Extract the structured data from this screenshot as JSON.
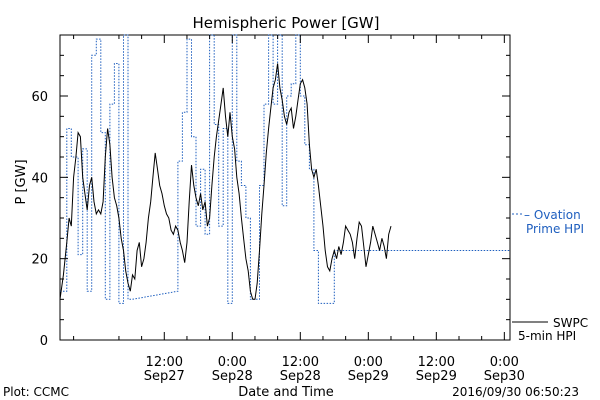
{
  "chart_data": {
    "type": "line",
    "title": "Hemispheric Power [GW]",
    "xlabel": "Date and Time",
    "ylabel": "P [GW]",
    "ylim": [
      0,
      75
    ],
    "x_range_hours": [
      -9.2,
      30.5
    ],
    "x_ticks": [
      {
        "time": "12:00",
        "date": "Sep27",
        "t": 0
      },
      {
        "time": "0:00",
        "date": "Sep28",
        "t": 6
      },
      {
        "time": "12:00",
        "date": "Sep28",
        "t": 12
      },
      {
        "time": "0:00",
        "date": "Sep29",
        "t": 18
      },
      {
        "time": "12:00",
        "date": "Sep29",
        "t": 24
      },
      {
        "time": "0:00",
        "date": "Sep30",
        "t": 30
      }
    ],
    "y_ticks": [
      0,
      20,
      40,
      60
    ],
    "grid": false,
    "legend": {
      "placement": "right",
      "ovation_label_1": "– Ovation",
      "ovation_label_2": "Prime HPI",
      "swpc_label_1": "SWPC",
      "swpc_label_2": "5-min HPI"
    },
    "footer": {
      "left": "Plot: CCMC",
      "right": "2016/09/30 06:50:23"
    },
    "series": [
      {
        "name": "SWPC 5-min HPI",
        "color": "#000000",
        "style": "solid",
        "points": [
          [
            -9.2,
            10
          ],
          [
            -8.9,
            16
          ],
          [
            -8.6,
            24
          ],
          [
            -8.4,
            30
          ],
          [
            -8.2,
            28
          ],
          [
            -8.0,
            40
          ],
          [
            -7.8,
            45
          ],
          [
            -7.6,
            51
          ],
          [
            -7.4,
            50
          ],
          [
            -7.2,
            40
          ],
          [
            -7.0,
            36
          ],
          [
            -6.8,
            32
          ],
          [
            -6.6,
            38
          ],
          [
            -6.4,
            40
          ],
          [
            -6.2,
            34
          ],
          [
            -6.0,
            31
          ],
          [
            -5.8,
            32
          ],
          [
            -5.6,
            31
          ],
          [
            -5.4,
            34
          ],
          [
            -5.2,
            45
          ],
          [
            -5.0,
            52
          ],
          [
            -4.8,
            48
          ],
          [
            -4.6,
            40
          ],
          [
            -4.4,
            35
          ],
          [
            -4.2,
            33
          ],
          [
            -4.0,
            30
          ],
          [
            -3.8,
            25
          ],
          [
            -3.6,
            22
          ],
          [
            -3.4,
            17
          ],
          [
            -3.2,
            14
          ],
          [
            -3.0,
            12
          ],
          [
            -2.8,
            16
          ],
          [
            -2.6,
            15
          ],
          [
            -2.4,
            22
          ],
          [
            -2.2,
            24
          ],
          [
            -2.0,
            18
          ],
          [
            -1.8,
            20
          ],
          [
            -1.6,
            24
          ],
          [
            -1.4,
            30
          ],
          [
            -1.2,
            34
          ],
          [
            -1.0,
            40
          ],
          [
            -0.8,
            46
          ],
          [
            -0.6,
            42
          ],
          [
            -0.4,
            38
          ],
          [
            -0.2,
            36
          ],
          [
            0.0,
            33
          ],
          [
            0.2,
            31
          ],
          [
            0.4,
            30
          ],
          [
            0.6,
            27
          ],
          [
            0.8,
            26
          ],
          [
            1.0,
            28
          ],
          [
            1.2,
            27
          ],
          [
            1.4,
            24
          ],
          [
            1.6,
            22
          ],
          [
            1.8,
            19
          ],
          [
            2.0,
            24
          ],
          [
            2.2,
            34
          ],
          [
            2.4,
            43
          ],
          [
            2.6,
            38
          ],
          [
            2.8,
            35
          ],
          [
            3.0,
            33
          ],
          [
            3.2,
            36
          ],
          [
            3.4,
            32
          ],
          [
            3.6,
            34
          ],
          [
            3.8,
            28
          ],
          [
            4.0,
            30
          ],
          [
            4.2,
            38
          ],
          [
            4.4,
            45
          ],
          [
            4.6,
            50
          ],
          [
            4.8,
            54
          ],
          [
            5.0,
            58
          ],
          [
            5.2,
            62
          ],
          [
            5.4,
            55
          ],
          [
            5.6,
            50
          ],
          [
            5.8,
            56
          ],
          [
            6.0,
            50
          ],
          [
            6.2,
            47
          ],
          [
            6.4,
            40
          ],
          [
            6.6,
            36
          ],
          [
            6.8,
            30
          ],
          [
            7.0,
            25
          ],
          [
            7.2,
            20
          ],
          [
            7.4,
            17
          ],
          [
            7.6,
            12
          ],
          [
            7.8,
            10
          ],
          [
            8.0,
            10
          ],
          [
            8.2,
            14
          ],
          [
            8.4,
            22
          ],
          [
            8.6,
            31
          ],
          [
            8.8,
            38
          ],
          [
            9.0,
            46
          ],
          [
            9.2,
            52
          ],
          [
            9.4,
            57
          ],
          [
            9.6,
            62
          ],
          [
            9.8,
            64
          ],
          [
            10.0,
            68
          ],
          [
            10.2,
            62
          ],
          [
            10.4,
            59
          ],
          [
            10.6,
            55
          ],
          [
            10.8,
            53
          ],
          [
            11.0,
            56
          ],
          [
            11.2,
            57
          ],
          [
            11.4,
            52
          ],
          [
            11.6,
            55
          ],
          [
            11.8,
            59
          ],
          [
            12.0,
            63
          ],
          [
            12.2,
            64
          ],
          [
            12.4,
            62
          ],
          [
            12.6,
            58
          ],
          [
            12.8,
            48
          ],
          [
            13.0,
            42
          ],
          [
            13.2,
            40
          ],
          [
            13.4,
            42
          ],
          [
            13.6,
            38
          ],
          [
            13.8,
            33
          ],
          [
            14.0,
            28
          ],
          [
            14.2,
            22
          ],
          [
            14.4,
            18
          ],
          [
            14.6,
            17
          ],
          [
            14.8,
            20
          ],
          [
            15.0,
            22
          ],
          [
            15.2,
            20
          ],
          [
            15.4,
            23
          ],
          [
            15.6,
            21
          ],
          [
            15.8,
            24
          ],
          [
            16.0,
            28
          ],
          [
            16.2,
            27
          ],
          [
            16.4,
            26
          ],
          [
            16.6,
            24
          ],
          [
            16.8,
            20
          ],
          [
            17.0,
            25
          ],
          [
            17.2,
            29
          ],
          [
            17.4,
            28
          ],
          [
            17.6,
            23
          ],
          [
            17.8,
            18
          ],
          [
            18.0,
            21
          ],
          [
            18.2,
            24
          ],
          [
            18.4,
            28
          ],
          [
            18.6,
            26
          ],
          [
            18.8,
            24
          ],
          [
            19.0,
            22
          ],
          [
            19.2,
            25
          ],
          [
            19.4,
            23
          ],
          [
            19.6,
            20
          ],
          [
            19.8,
            26
          ],
          [
            20.0,
            28
          ]
        ]
      },
      {
        "name": "Ovation Prime HPI",
        "color": "#1f5fbf",
        "style": "dotted",
        "points": [
          [
            -9.2,
            12
          ],
          [
            -8.6,
            12
          ],
          [
            -8.6,
            52
          ],
          [
            -8.2,
            52
          ],
          [
            -8.2,
            45
          ],
          [
            -7.6,
            45
          ],
          [
            -7.6,
            21
          ],
          [
            -7.2,
            21
          ],
          [
            -7.2,
            47
          ],
          [
            -6.8,
            47
          ],
          [
            -6.8,
            12
          ],
          [
            -6.4,
            12
          ],
          [
            -6.4,
            70
          ],
          [
            -6.0,
            70
          ],
          [
            -6.0,
            74
          ],
          [
            -5.6,
            74
          ],
          [
            -5.6,
            51
          ],
          [
            -5.2,
            51
          ],
          [
            -5.2,
            10
          ],
          [
            -4.8,
            10
          ],
          [
            -4.8,
            58
          ],
          [
            -4.4,
            58
          ],
          [
            -4.4,
            68
          ],
          [
            -4.0,
            68
          ],
          [
            -4.0,
            9
          ],
          [
            -3.6,
            9
          ],
          [
            -3.6,
            76
          ],
          [
            -3.2,
            76
          ],
          [
            -3.2,
            10
          ],
          [
            -2.8,
            10
          ],
          [
            1.2,
            12
          ],
          [
            1.2,
            44
          ],
          [
            1.6,
            44
          ],
          [
            1.6,
            56
          ],
          [
            2.0,
            56
          ],
          [
            2.0,
            74
          ],
          [
            2.4,
            74
          ],
          [
            2.4,
            50
          ],
          [
            2.8,
            50
          ],
          [
            2.8,
            28
          ],
          [
            3.2,
            28
          ],
          [
            3.2,
            42
          ],
          [
            3.6,
            42
          ],
          [
            3.6,
            26
          ],
          [
            4.0,
            26
          ],
          [
            4.0,
            76
          ],
          [
            4.4,
            76
          ],
          [
            4.4,
            53
          ],
          [
            4.8,
            53
          ],
          [
            4.8,
            28
          ],
          [
            5.2,
            28
          ],
          [
            5.2,
            52
          ],
          [
            5.6,
            52
          ],
          [
            5.6,
            9
          ],
          [
            6.0,
            9
          ],
          [
            6.0,
            76
          ],
          [
            6.4,
            76
          ],
          [
            6.4,
            44
          ],
          [
            6.8,
            44
          ],
          [
            6.8,
            38
          ],
          [
            7.2,
            38
          ],
          [
            7.2,
            30
          ],
          [
            7.6,
            30
          ],
          [
            7.6,
            10
          ],
          [
            8.0,
            10
          ],
          [
            8.0,
            10
          ],
          [
            8.4,
            10
          ],
          [
            8.4,
            38
          ],
          [
            8.8,
            38
          ],
          [
            8.8,
            58
          ],
          [
            9.2,
            58
          ],
          [
            9.2,
            76
          ],
          [
            9.6,
            76
          ],
          [
            9.6,
            58
          ],
          [
            10.0,
            58
          ],
          [
            10.0,
            76
          ],
          [
            10.4,
            76
          ],
          [
            10.4,
            33
          ],
          [
            10.8,
            33
          ],
          [
            10.8,
            60
          ],
          [
            11.2,
            60
          ],
          [
            11.2,
            63
          ],
          [
            11.6,
            63
          ],
          [
            11.6,
            76
          ],
          [
            12.0,
            76
          ],
          [
            12.0,
            60
          ],
          [
            12.4,
            60
          ],
          [
            12.4,
            48
          ],
          [
            12.8,
            48
          ],
          [
            12.8,
            42
          ],
          [
            13.2,
            42
          ],
          [
            13.2,
            22
          ],
          [
            13.6,
            22
          ],
          [
            13.6,
            9
          ],
          [
            15.0,
            9
          ],
          [
            15.0,
            22
          ],
          [
            30.5,
            22
          ]
        ]
      }
    ]
  }
}
